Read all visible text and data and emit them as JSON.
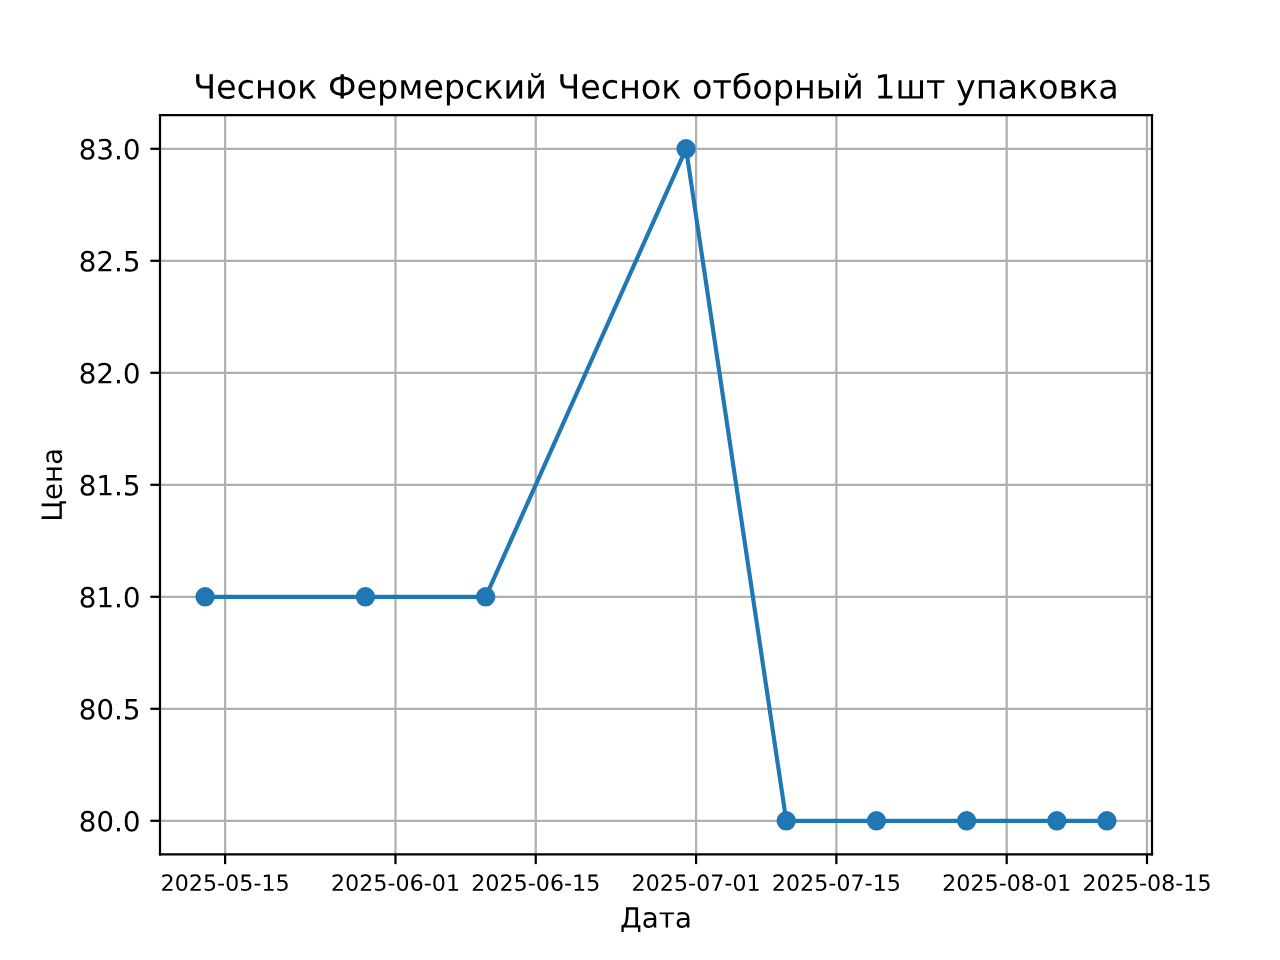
{
  "chart_data": {
    "type": "line",
    "title": "Чеснок Фермерский Чеснок отборный 1шт упаковка",
    "xlabel": "Дата",
    "ylabel": "Цена",
    "x": [
      "2025-05-13",
      "2025-05-29",
      "2025-06-10",
      "2025-06-30",
      "2025-07-10",
      "2025-07-19",
      "2025-07-28",
      "2025-08-06",
      "2025-08-11"
    ],
    "series": [
      {
        "color": "#1f77b4",
        "values": [
          81,
          81,
          81,
          83,
          80,
          80,
          80,
          80,
          80
        ]
      }
    ],
    "xlim": [
      "2025-05-08T12:00",
      "2025-08-15T12:00"
    ],
    "xticks": [
      "2025-05-15",
      "2025-06-01",
      "2025-06-15",
      "2025-07-01",
      "2025-07-15",
      "2025-08-01",
      "2025-08-15"
    ],
    "ylim": [
      79.85,
      83.15
    ],
    "yticks": [
      {
        "value": 80,
        "label": "80.0"
      },
      {
        "value": 80.5,
        "label": "80.5"
      },
      {
        "value": 81,
        "label": "81.0"
      },
      {
        "value": 81.5,
        "label": "81.5"
      },
      {
        "value": 82,
        "label": "82.0"
      },
      {
        "value": 82.5,
        "label": "82.5"
      },
      {
        "value": 83,
        "label": "83.0"
      }
    ],
    "grid": true,
    "marker": "circle",
    "line_style": "solid"
  }
}
